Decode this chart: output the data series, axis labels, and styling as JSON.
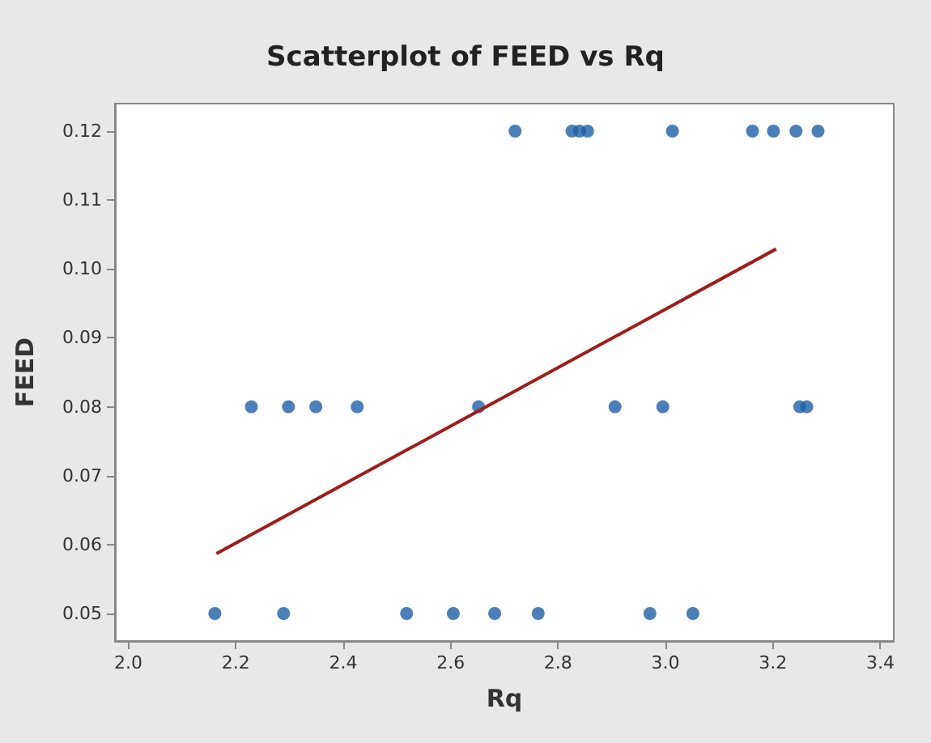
{
  "chart_data": {
    "type": "scatter",
    "title": "Scatterplot of FEED vs Rq",
    "xlabel": "Rq",
    "ylabel": "FEED",
    "xlim": [
      1.975,
      3.425
    ],
    "xticks": [
      {
        "value": 2.0,
        "label": "2.0"
      },
      {
        "value": 2.2,
        "label": "2.2"
      },
      {
        "value": 2.4,
        "label": "2.4"
      },
      {
        "value": 2.6,
        "label": "2.6"
      },
      {
        "value": 2.8,
        "label": "2.8"
      },
      {
        "value": 3.0,
        "label": "3.0"
      },
      {
        "value": 3.2,
        "label": "3.2"
      },
      {
        "value": 3.4,
        "label": "3.4"
      }
    ],
    "ylim": [
      0.046,
      0.124
    ],
    "yticks": [
      0.05,
      0.06,
      0.07,
      0.08,
      0.09,
      {
        "value": 0.1,
        "label": "0.10"
      },
      0.11,
      0.12
    ],
    "grid": false,
    "marker": "circle",
    "series": [
      {
        "color": "#1f5fa6",
        "x": [
          2.72,
          2.826,
          2.84,
          2.855,
          3.013,
          3.162,
          3.201,
          3.243,
          3.284,
          2.229,
          2.298,
          2.349,
          2.426,
          2.652,
          2.906,
          2.995,
          3.25,
          3.263,
          2.161,
          2.289,
          2.518,
          2.605,
          2.682,
          2.763,
          2.971,
          3.051
        ],
        "values": [
          0.12,
          0.12,
          0.12,
          0.12,
          0.12,
          0.12,
          0.12,
          0.12,
          0.12,
          0.08,
          0.08,
          0.08,
          0.08,
          0.08,
          0.08,
          0.08,
          0.08,
          0.08,
          0.05,
          0.05,
          0.05,
          0.05,
          0.05,
          0.05,
          0.05,
          0.05
        ]
      },
      {
        "type": "line",
        "color": "#a01c1c",
        "marker": "none",
        "line_style": "solid",
        "x": [
          2.164,
          3.206
        ],
        "values": [
          0.0587,
          0.1029
        ]
      }
    ]
  }
}
